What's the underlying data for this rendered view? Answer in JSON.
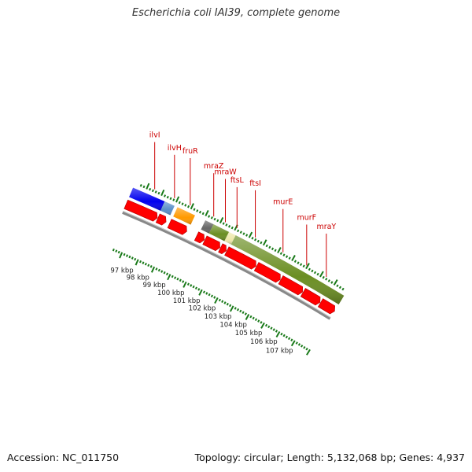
{
  "title": "Escherichia coli IAI39, complete genome",
  "footer": {
    "accession": "Accession: NC_011750",
    "summary": "Topology: circular; Length: 5,132,068 bp; Genes: 4,937"
  },
  "colors": {
    "label_red": "#cc0000",
    "tick_green": "#1a7a1a",
    "backbone": "#888888",
    "cds_red": "#ff0000",
    "blue": "#0000ee",
    "steelblue": "#5a8fc8",
    "orange": "#ff9900",
    "olive": "#6b8e23",
    "pale": "#eee8aa",
    "dimgray": "#666666"
  },
  "gene_labels": [
    {
      "name": "ilvI",
      "pos": 0.045
    },
    {
      "name": "ilvH",
      "pos": 0.145
    },
    {
      "name": "fruR",
      "pos": 0.225
    },
    {
      "name": "mraZ",
      "pos": 0.345
    },
    {
      "name": "mraW",
      "pos": 0.405
    },
    {
      "name": "ftsL",
      "pos": 0.465
    },
    {
      "name": "ftsI",
      "pos": 0.56
    },
    {
      "name": "murE",
      "pos": 0.705
    },
    {
      "name": "murF",
      "pos": 0.83
    },
    {
      "name": "mraY",
      "pos": 0.935
    }
  ],
  "kbp_labels": [
    "97 kbp",
    "98 kbp",
    "99 kbp",
    "100 kbp",
    "101 kbp",
    "102 kbp",
    "103 kbp",
    "104 kbp",
    "105 kbp",
    "106 kbp",
    "107 kbp"
  ],
  "kbp_positions": [
    0.055,
    0.14,
    0.228,
    0.318,
    0.403,
    0.488,
    0.575,
    0.66,
    0.745,
    0.83,
    0.918
  ],
  "feature_bars": [
    {
      "name": "blue-feature",
      "color": "blue",
      "start": -0.05,
      "end": 0.11
    },
    {
      "name": "steelblue-feature",
      "color": "steelblue",
      "start": 0.11,
      "end": 0.16
    },
    {
      "name": "orange-feature",
      "color": "orange",
      "start": 0.175,
      "end": 0.265
    },
    {
      "name": "gray-feature",
      "color": "dimgray",
      "start": 0.318,
      "end": 0.36
    },
    {
      "name": "olive-feature-a",
      "color": "olive",
      "start": 0.36,
      "end": 0.44
    },
    {
      "name": "pale-feature",
      "color": "pale",
      "start": 0.44,
      "end": 0.475
    },
    {
      "name": "olive-feature-b",
      "color": "olive",
      "start": 0.475,
      "end": 1.05
    }
  ],
  "cds_arrows": [
    {
      "start": -0.05,
      "end": 0.11
    },
    {
      "start": 0.113,
      "end": 0.155
    },
    {
      "start": 0.173,
      "end": 0.262
    },
    {
      "start": 0.313,
      "end": 0.353
    },
    {
      "start": 0.356,
      "end": 0.435
    },
    {
      "start": 0.438,
      "end": 0.468
    },
    {
      "start": 0.471,
      "end": 0.625
    },
    {
      "start": 0.628,
      "end": 0.755
    },
    {
      "start": 0.758,
      "end": 0.875
    },
    {
      "start": 0.878,
      "end": 0.97
    },
    {
      "start": 0.973,
      "end": 1.05
    }
  ]
}
